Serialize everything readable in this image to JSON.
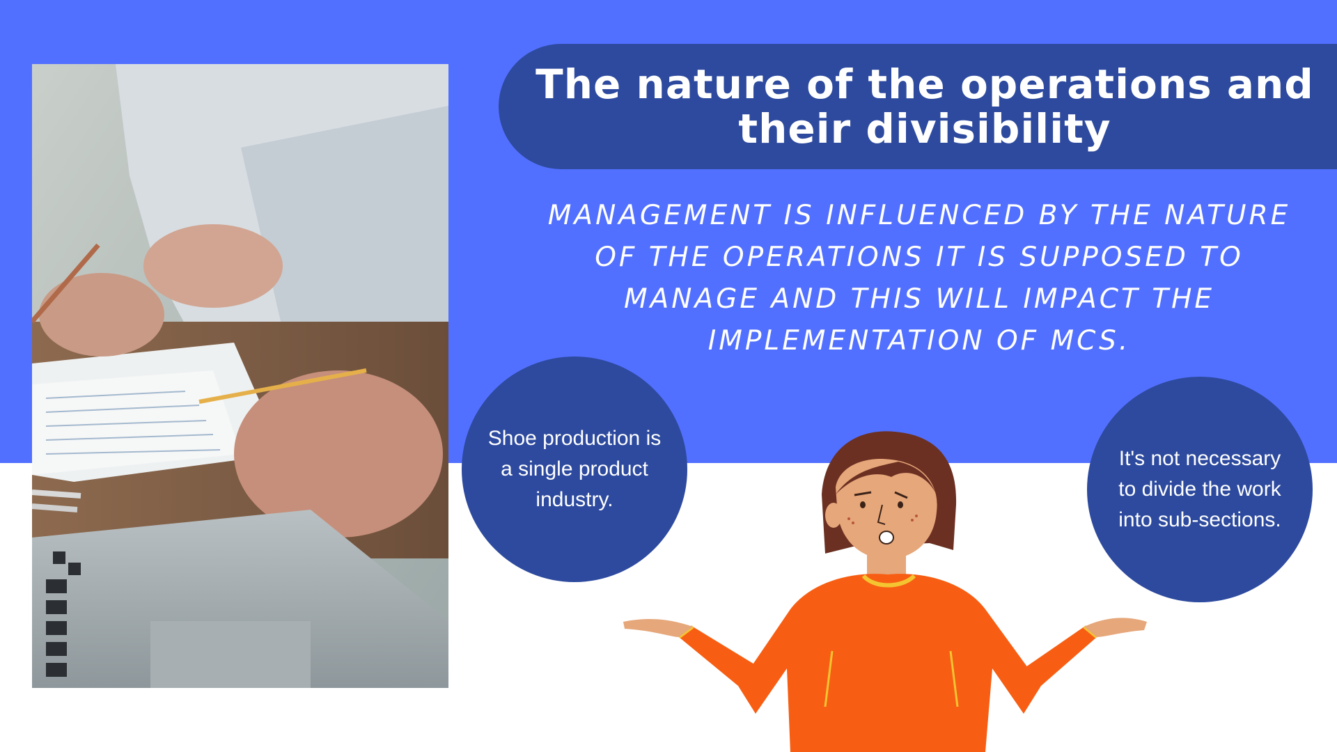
{
  "title": "The nature of the operations and their divisibility",
  "subtitle": "MANAGEMENT IS INFLUENCED BY THE NATURE OF THE OPERATIONS IT IS SUPPOSED TO MANAGE AND THIS WILL IMPACT THE IMPLEMENTATION OF MCS.",
  "bubbles": {
    "left": "Shoe production is a single product industry.",
    "right": "It's not necessary to divide the work into sub-sections."
  },
  "colors": {
    "background_blue": "#5270ff",
    "dark_blue": "#2d4a9e",
    "white": "#ffffff",
    "shirt_orange": "#f75e13"
  },
  "images": {
    "photo": "business-people-working-on-documents-photo",
    "illustration": "confused-woman-shrugging-illustration"
  }
}
